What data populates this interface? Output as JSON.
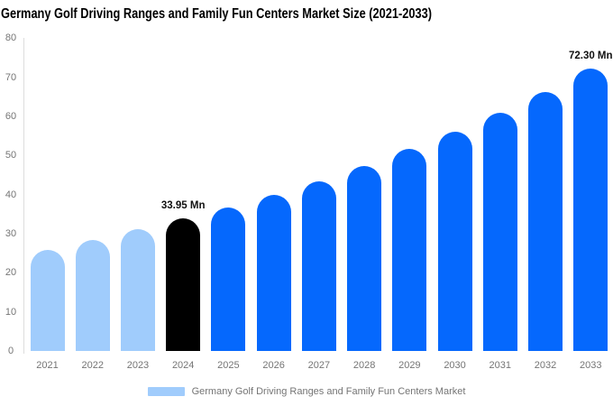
{
  "title": "Germany Golf Driving Ranges and Family Fun Centers Market Size (2021-2033)",
  "colors": {
    "historical": "#A0CCFC",
    "current": "#000000",
    "forecast": "#0568FD",
    "axis_text": "#757575",
    "axis_line": "#DDDDDD",
    "annotation_text": "#111111",
    "background": "#FFFFFF"
  },
  "legend": {
    "label": "Germany Golf Driving Ranges and Family Fun Centers Market",
    "swatch_color": "#A0CCFC"
  },
  "chart_data": {
    "type": "bar",
    "title": "Germany Golf Driving Ranges and Family Fun Centers Market Size (2021-2033)",
    "categories": [
      "2021",
      "2022",
      "2023",
      "2024",
      "2025",
      "2026",
      "2027",
      "2028",
      "2029",
      "2030",
      "2031",
      "2032",
      "2033"
    ],
    "values": [
      25.9,
      28.4,
      31.1,
      33.95,
      36.7,
      40.0,
      43.4,
      47.3,
      51.6,
      56.0,
      60.9,
      66.3,
      72.3
    ],
    "unit": "Mn",
    "bar_roles": [
      "historical",
      "historical",
      "historical",
      "current",
      "forecast",
      "forecast",
      "forecast",
      "forecast",
      "forecast",
      "forecast",
      "forecast",
      "forecast",
      "forecast"
    ],
    "annotations": [
      {
        "category": "2024",
        "text": "33.95 Mn"
      },
      {
        "category": "2033",
        "text": "72.30 Mn"
      }
    ],
    "xlabel": "",
    "ylabel": "",
    "ylim": [
      0,
      80
    ],
    "yticks": [
      0,
      10,
      20,
      30,
      40,
      50,
      60,
      70,
      80
    ],
    "grid": false,
    "legend_position": "bottom"
  }
}
